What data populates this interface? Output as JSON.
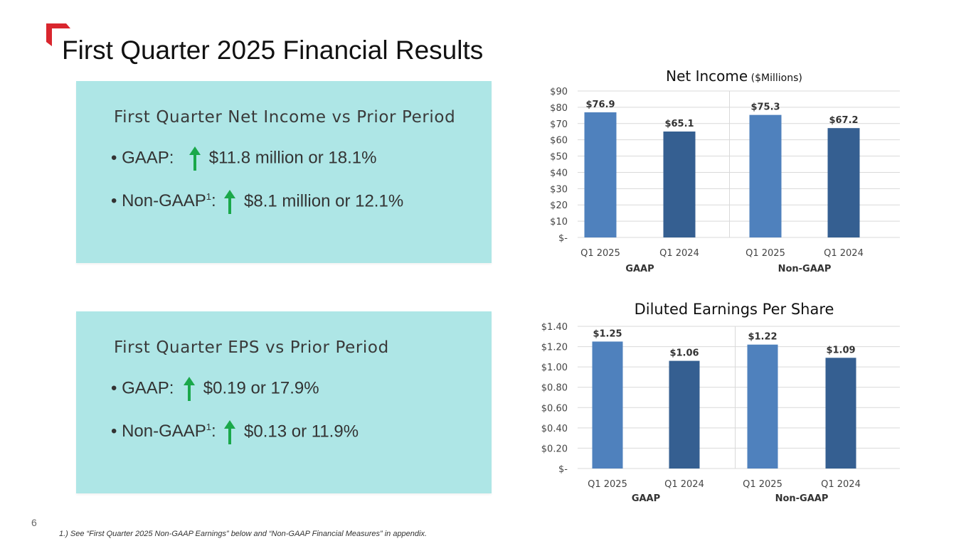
{
  "slide": {
    "title": "First Quarter 2025 Financial Results",
    "page_number": "6",
    "footnote": "1.) See “First Quarter 2025 Non-GAAP Earnings” below and “Non-GAAP Financial Measures” in appendix.",
    "accent_color": "#d9262e"
  },
  "boxes": [
    {
      "heading": "First Quarter Net Income vs Prior Period",
      "bullets": [
        {
          "label": "• GAAP:",
          "value": "$11.8 million or 18.1%",
          "direction": "up"
        },
        {
          "label": "• Non-GAAP",
          "sup": "1",
          "suffix": ":",
          "value": "$8.1 million or 12.1%",
          "direction": "up"
        }
      ]
    },
    {
      "heading": "First Quarter EPS vs Prior Period",
      "bullets": [
        {
          "label": "• GAAP:",
          "value": "$0.19 or 17.9%",
          "direction": "up"
        },
        {
          "label": "• Non-GAAP",
          "sup": "1",
          "suffix": ":",
          "value": "$0.13 or 11.9%",
          "direction": "up"
        }
      ]
    }
  ],
  "colors": {
    "box_bg": "#aee6e6",
    "arrow": "#1aa84a",
    "bar_light": "#4f81bd",
    "bar_dark": "#355f91"
  },
  "chart_data": [
    {
      "type": "bar",
      "title": "Net Income",
      "subtitle": "($Millions)",
      "categories": [
        "Q1 2025",
        "Q1 2024",
        "Q1 2025",
        "Q1 2024"
      ],
      "groups": [
        "GAAP",
        "Non-GAAP"
      ],
      "values": [
        76.9,
        65.1,
        75.3,
        67.2
      ],
      "data_labels": [
        "$76.9",
        "$65.1",
        "$75.3",
        "$67.2"
      ],
      "ylim": [
        0,
        90
      ],
      "yticks": [
        "$-",
        "$10",
        "$20",
        "$30",
        "$40",
        "$50",
        "$60",
        "$70",
        "$80",
        "$90"
      ],
      "grid": true
    },
    {
      "type": "bar",
      "title": "Diluted Earnings Per Share",
      "categories": [
        "Q1 2025",
        "Q1 2024",
        "Q1 2025",
        "Q1 2024"
      ],
      "groups": [
        "GAAP",
        "Non-GAAP"
      ],
      "values": [
        1.25,
        1.06,
        1.22,
        1.09
      ],
      "data_labels": [
        "$1.25",
        "$1.06",
        "$1.22",
        "$1.09"
      ],
      "ylim": [
        0,
        1.4
      ],
      "yticks": [
        "$-",
        "$0.20",
        "$0.40",
        "$0.60",
        "$0.80",
        "$1.00",
        "$1.20",
        "$1.40"
      ],
      "grid": true
    }
  ]
}
